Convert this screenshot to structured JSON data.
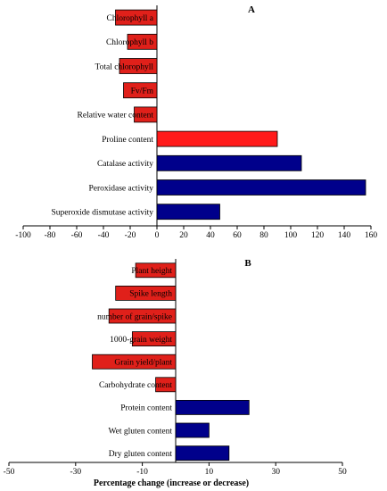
{
  "chart_data": [
    {
      "type": "bar",
      "orientation": "horizontal",
      "panel_label": "A",
      "categories": [
        "Chlorophyll a",
        "Chlorophyll b",
        "Total chlorophyll",
        "Fv/Fm",
        "Relative water content",
        "Proline content",
        "Catalase activity",
        "Peroxidase activity",
        "Superoxide dismutase activity"
      ],
      "values": [
        -31,
        -22,
        -28,
        -25,
        -17,
        90,
        108,
        156,
        47
      ],
      "colors": [
        "#e0201a",
        "#e0201a",
        "#e0201a",
        "#e0201a",
        "#e0201a",
        "#ff1a1a",
        "#00008b",
        "#00008b",
        "#00008b"
      ],
      "xlim": [
        -100,
        160
      ],
      "xticks": [
        -100,
        -80,
        -60,
        -40,
        -20,
        0,
        20,
        40,
        60,
        80,
        100,
        120,
        140,
        160
      ],
      "xlabel": "",
      "ylabel": "",
      "grid": false
    },
    {
      "type": "bar",
      "orientation": "horizontal",
      "panel_label": "B",
      "categories": [
        "Plant height",
        "Spike length",
        "number of grain/spike",
        "1000-grain weight",
        "Grain yield/plant",
        "Carbohydrate content",
        "Protein content",
        "Wet gluten content",
        "Dry gluten content"
      ],
      "values": [
        -12,
        -18,
        -20,
        -13,
        -25,
        -6,
        22,
        10,
        16
      ],
      "colors": [
        "#e0201a",
        "#e0201a",
        "#e0201a",
        "#e0201a",
        "#e0201a",
        "#e0201a",
        "#00008b",
        "#00008b",
        "#00008b"
      ],
      "xlim": [
        -50,
        50
      ],
      "xticks": [
        -50,
        -30,
        -10,
        10,
        30,
        50
      ],
      "xlabel": "Percentage change (increase or decrease)",
      "ylabel": "",
      "grid": false
    }
  ]
}
